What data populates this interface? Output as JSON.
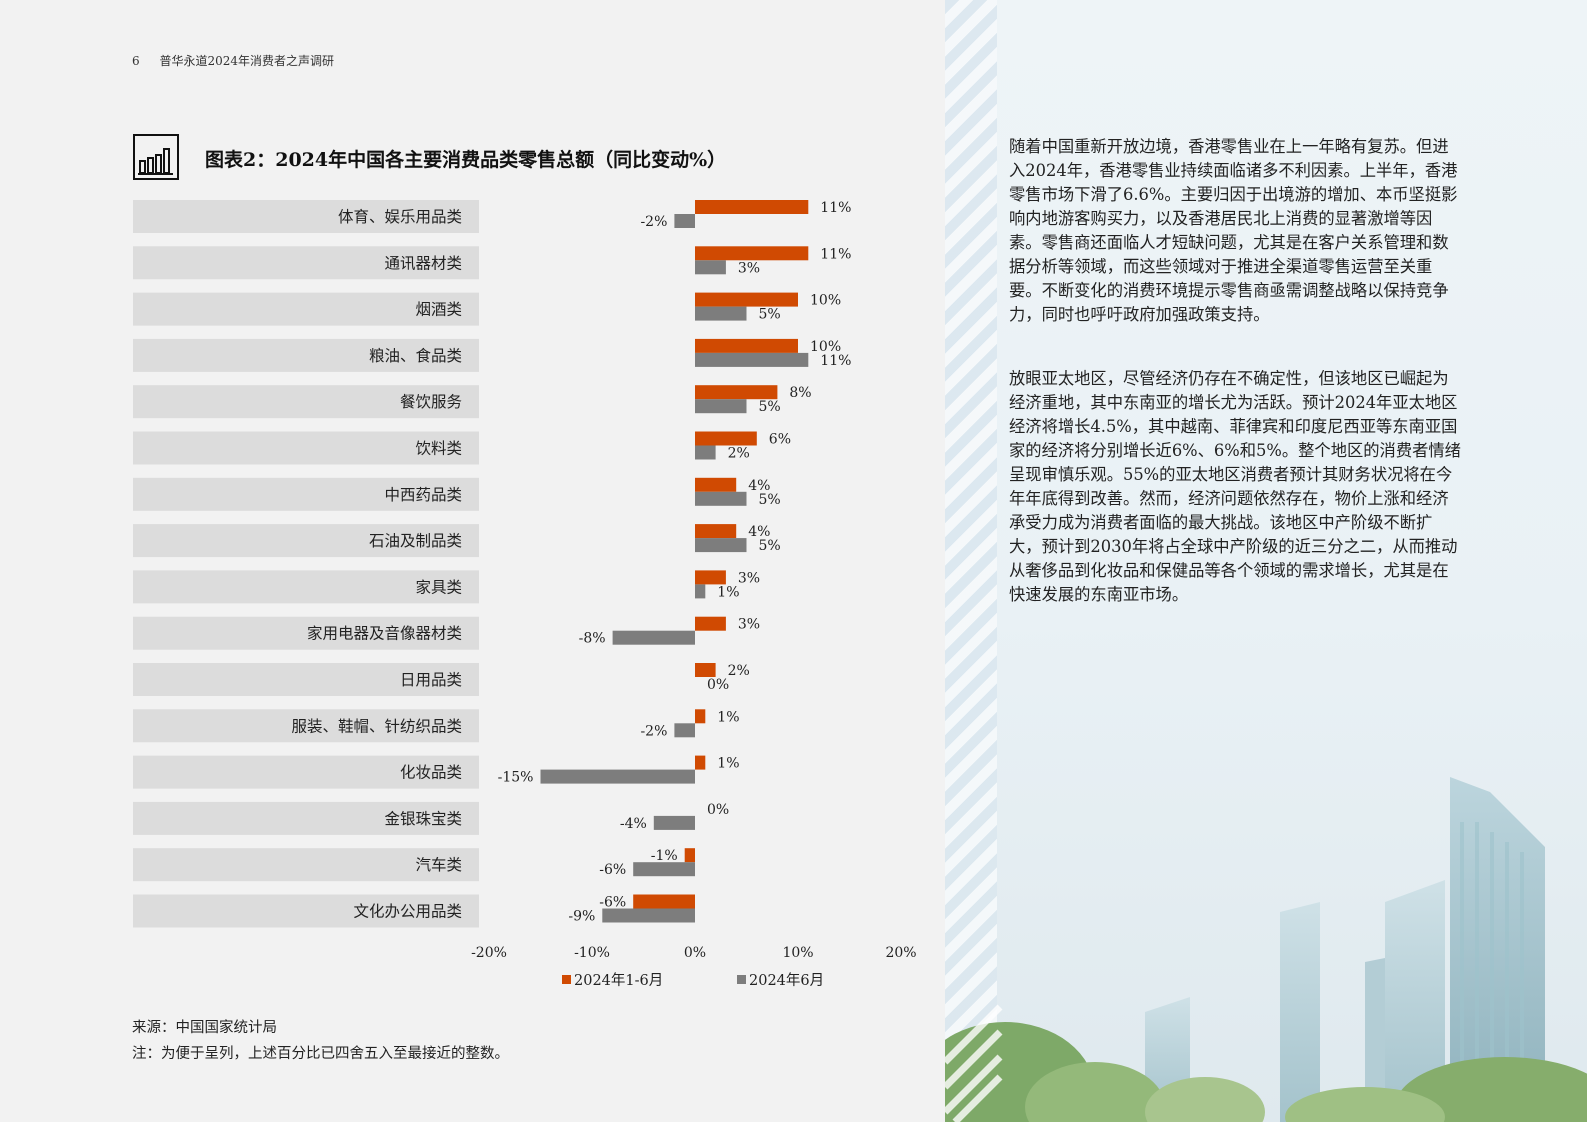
{
  "header": {
    "page_number": "6",
    "doc_title": "普华永道2024年消费者之声调研"
  },
  "figure": {
    "title": "图表2：2024年中国各主要消费品类零售总额（同比变动%）",
    "icon": "bar-chart-icon"
  },
  "chart_data": {
    "type": "bar",
    "orientation": "horizontal",
    "categories": [
      "体育、娱乐用品类",
      "通讯器材类",
      "烟酒类",
      "粮油、食品类",
      "餐饮服务",
      "饮料类",
      "中西药品类",
      "石油及制品类",
      "家具类",
      "家用电器及音像器材类",
      "日用品类",
      "服装、鞋帽、针纺织品类",
      "化妆品类",
      "金银珠宝类",
      "汽车类",
      "文化办公用品类"
    ],
    "series": [
      {
        "name": "2024年1-6月",
        "color": "#d04a02",
        "values": [
          11,
          11,
          10,
          10,
          8,
          6,
          4,
          4,
          3,
          3,
          2,
          1,
          1,
          0,
          -1,
          -6
        ]
      },
      {
        "name": "2024年6月",
        "color": "#7d7d7d",
        "values": [
          -2,
          3,
          5,
          11,
          5,
          2,
          5,
          5,
          1,
          -8,
          0,
          -2,
          -15,
          -4,
          -6,
          -9
        ]
      }
    ],
    "xlim": [
      -20,
      20
    ],
    "xticks": [
      "-20%",
      "-10%",
      "0%",
      "10%",
      "20%"
    ],
    "legend_position": "bottom"
  },
  "source": "来源：中国国家统计局",
  "note": "注：为便于呈列，上述百分比已四舍五入至最接近的整数。",
  "body": {
    "p1": "随着中国重新开放边境，香港零售业在上一年略有复苏。但进入2024年，香港零售业持续面临诸多不利因素。上半年，香港零售市场下滑了6.6%。主要归因于出境游的增加、本币坚挺影响内地游客购买力，以及香港居民北上消费的显著激增等因素。零售商还面临人才短缺问题，尤其是在客户关系管理和数据分析等领域，而这些领域对于推进全渠道零售运营至关重要。不断变化的消费环境提示零售商亟需调整战略以保持竞争力，同时也呼吁政府加强政策支持。",
    "p2": "放眼亚太地区，尽管经济仍存在不确定性，但该地区已崛起为经济重地，其中东南亚的增长尤为活跃。预计2024年亚太地区经济将增长4.5%，其中越南、菲律宾和印度尼西亚等东南亚国家的经济将分别增长近6%、6%和5%。整个地区的消费者情绪呈现审慎乐观。55%的亚太地区消费者预计其财务状况将在今年年底得到改善。然而，经济问题依然存在，物价上涨和经济承受力成为消费者面临的最大挑战。该地区中产阶级不断扩大，预计到2030年将占全球中产阶级的近三分之二，从而推动从奢侈品到化妆品和保健品等各个领域的需求增长，尤其是在快速发展的东南亚市场。"
  }
}
